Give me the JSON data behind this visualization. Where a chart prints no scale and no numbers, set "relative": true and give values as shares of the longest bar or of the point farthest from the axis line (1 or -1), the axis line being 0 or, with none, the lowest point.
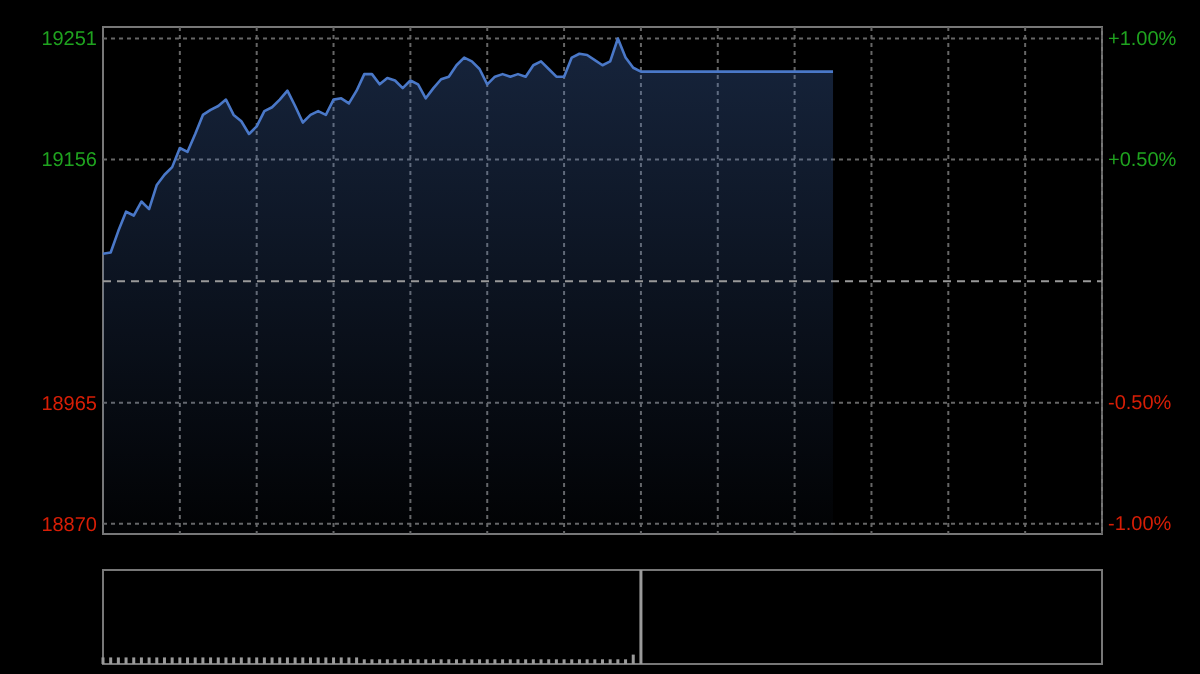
{
  "chart_data": [
    {
      "type": "area",
      "categories": [
        null,
        null,
        null,
        null,
        null,
        null,
        null,
        null,
        null,
        null,
        null,
        null,
        null,
        null,
        null,
        null,
        null,
        null,
        null,
        null,
        null,
        null,
        null,
        null,
        null,
        null,
        null,
        null,
        null,
        null,
        null,
        null,
        null,
        null,
        null,
        null,
        null,
        null,
        null,
        null,
        null,
        null,
        null,
        null,
        null,
        null,
        null,
        null,
        null,
        null,
        null,
        null,
        null,
        null,
        null,
        null,
        null,
        null,
        null,
        null,
        null,
        null,
        null,
        null,
        null,
        null,
        null,
        null,
        null,
        null,
        null,
        null,
        null,
        null,
        null,
        null,
        null,
        null,
        null,
        null,
        null,
        null,
        null,
        null,
        null,
        null,
        null,
        null,
        null,
        null,
        null,
        null,
        null,
        null,
        null,
        null,
        null,
        null,
        null,
        null,
        null,
        null,
        null,
        null,
        null,
        null,
        null,
        null,
        null,
        null,
        null,
        null,
        null,
        null,
        null,
        null,
        null,
        null,
        null,
        null,
        null,
        null,
        null,
        null,
        null,
        null,
        null,
        null,
        null,
        null,
        null
      ],
      "series": [
        {
          "color": "#4a78c8",
          "values": [
            19082,
            19083,
            19100,
            19115,
            19112,
            19123,
            19117,
            19136,
            19144,
            19150,
            19165,
            19162,
            19176,
            19191,
            19195,
            19198,
            19203,
            19191,
            19186,
            19176,
            19182,
            19194,
            19197,
            19203,
            19210,
            19198,
            19185,
            19191,
            19194,
            19191,
            19203,
            19204,
            19200,
            19210,
            19223,
            19223,
            19215,
            19220,
            19218,
            19212,
            19218,
            19215,
            19204,
            19212,
            19219,
            19221,
            19230,
            19236,
            19233,
            19227,
            19215,
            19221,
            19223,
            19221,
            19223,
            19221,
            19230,
            19233,
            19227,
            19221,
            19221,
            19236,
            19239,
            19238,
            19234,
            19230,
            19233,
            19251,
            19236,
            19228,
            19225,
            19225,
            19225,
            19225,
            19225,
            19225,
            19225,
            19225,
            19225,
            19225,
            19225,
            19225,
            19225,
            19225,
            19225,
            19225,
            19225,
            19225,
            19225,
            19225,
            19225,
            19225,
            19225,
            19225,
            19225,
            19225,
            null,
            null,
            null,
            null,
            null,
            null,
            null,
            null,
            null,
            null,
            null,
            null,
            null,
            null,
            null,
            null,
            null,
            null,
            null,
            null,
            null,
            null,
            null,
            null,
            null,
            null,
            null,
            null,
            null,
            null,
            null,
            null,
            null,
            null,
            null
          ]
        }
      ],
      "ylim": [
        18862,
        19260
      ],
      "yticks": [
        19251,
        19156,
        18965,
        18870
      ],
      "y2lim": [
        -1.047,
        1.047
      ],
      "y2ticks": [
        {
          "value": 1,
          "label": "+1.00%"
        },
        {
          "value": 0.5,
          "label": "+0.50%"
        },
        {
          "value": -0.5,
          "label": "-0.50%"
        },
        {
          "value": -1,
          "label": "-1.00%"
        }
      ],
      "ref_lines": [
        {
          "axis": "y",
          "value": 19060.4,
          "line_style": "dashed"
        }
      ],
      "grid": true
    },
    {
      "type": "bar",
      "relative": true,
      "categories": [
        null,
        null,
        null,
        null,
        null,
        null,
        null,
        null,
        null,
        null,
        null,
        null,
        null,
        null,
        null,
        null,
        null,
        null,
        null,
        null,
        null,
        null,
        null,
        null,
        null,
        null,
        null,
        null,
        null,
        null,
        null,
        null,
        null,
        null,
        null,
        null,
        null,
        null,
        null,
        null,
        null,
        null,
        null,
        null,
        null,
        null,
        null,
        null,
        null,
        null,
        null,
        null,
        null,
        null,
        null,
        null,
        null,
        null,
        null,
        null,
        null,
        null,
        null,
        null,
        null,
        null,
        null,
        null,
        null,
        null,
        null,
        null,
        null,
        null,
        null,
        null,
        null,
        null,
        null,
        null,
        null,
        null,
        null,
        null,
        null,
        null,
        null,
        null,
        null,
        null,
        null,
        null,
        null,
        null,
        null,
        null,
        null,
        null,
        null,
        null,
        null,
        null,
        null,
        null,
        null,
        null,
        null,
        null,
        null,
        null,
        null,
        null,
        null,
        null,
        null,
        null,
        null,
        null,
        null,
        null,
        null,
        null,
        null,
        null,
        null,
        null,
        null,
        null,
        null,
        null,
        null
      ],
      "values": [
        0.07,
        0.07,
        0.07,
        0.07,
        0.07,
        0.07,
        0.07,
        0.07,
        0.07,
        0.07,
        0.07,
        0.07,
        0.07,
        0.07,
        0.07,
        0.07,
        0.07,
        0.07,
        0.07,
        0.07,
        0.07,
        0.07,
        0.07,
        0.07,
        0.07,
        0.07,
        0.07,
        0.07,
        0.07,
        0.07,
        0.07,
        0.07,
        0.07,
        0.07,
        0.05,
        0.05,
        0.05,
        0.05,
        0.05,
        0.05,
        0.05,
        0.05,
        0.05,
        0.05,
        0.05,
        0.05,
        0.05,
        0.05,
        0.05,
        0.05,
        0.05,
        0.05,
        0.05,
        0.05,
        0.05,
        0.05,
        0.05,
        0.05,
        0.05,
        0.05,
        0.05,
        0.05,
        0.05,
        0.05,
        0.05,
        0.05,
        0.05,
        0.05,
        0.05,
        0.1,
        1,
        null,
        null,
        null,
        null,
        null,
        null,
        null,
        null,
        null,
        null,
        null,
        null,
        null,
        null,
        null,
        null,
        null,
        null,
        null,
        null,
        null,
        null,
        null,
        null,
        null,
        null,
        null,
        null,
        null,
        null,
        null,
        null,
        null,
        null,
        null,
        null,
        null,
        null,
        null,
        null,
        null,
        null,
        null,
        null,
        null,
        null,
        null,
        null,
        null,
        null,
        null,
        null,
        null,
        null,
        null,
        null,
        null,
        null,
        null,
        null
      ],
      "color": "#9a9a9a"
    }
  ]
}
